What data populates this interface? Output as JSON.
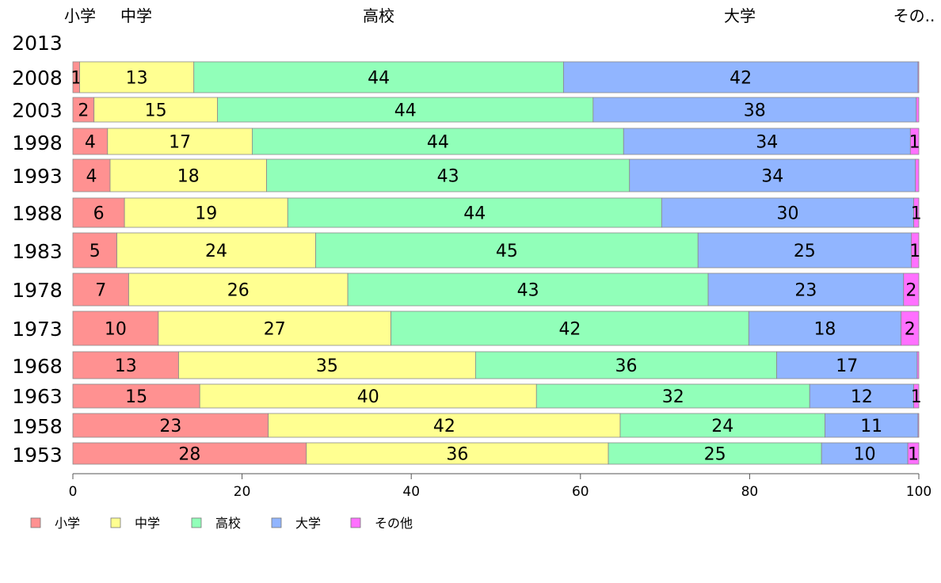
{
  "chart_data": {
    "type": "bar",
    "orientation": "horizontal",
    "stacked": true,
    "categories": [
      "2013",
      "2008",
      "2003",
      "1998",
      "1993",
      "1988",
      "1983",
      "1978",
      "1973",
      "1968",
      "1963",
      "1958",
      "1953"
    ],
    "series": [
      {
        "name": "小学",
        "color": "#ff9191",
        "values": [
          null,
          0.8,
          2.5,
          4.1,
          4.4,
          6.1,
          5.2,
          6.6,
          10.1,
          12.5,
          15.0,
          23.1,
          27.6
        ]
      },
      {
        "name": "中学",
        "color": "#ffff91",
        "values": [
          null,
          13.5,
          14.6,
          17.1,
          18.5,
          19.3,
          23.5,
          25.9,
          27.5,
          35.1,
          39.8,
          41.6,
          35.7
        ]
      },
      {
        "name": "高校",
        "color": "#91ffb9",
        "values": [
          null,
          43.7,
          44.4,
          43.9,
          42.9,
          44.2,
          45.2,
          42.6,
          42.3,
          35.6,
          32.3,
          24.2,
          25.2
        ]
      },
      {
        "name": "大学",
        "color": "#91b5ff",
        "values": [
          null,
          41.9,
          38.2,
          33.9,
          33.8,
          29.8,
          25.2,
          23.1,
          18.0,
          16.6,
          12.3,
          11.0,
          10.2
        ]
      },
      {
        "name": "その他",
        "color": "#ff70ff",
        "values": [
          null,
          0.1,
          0.3,
          1.0,
          0.4,
          0.6,
          0.9,
          1.8,
          2.1,
          0.2,
          0.6,
          0.1,
          1.3
        ]
      }
    ],
    "data_labels": [
      [],
      [
        "1",
        "13",
        "44",
        "42",
        ""
      ],
      [
        "2",
        "15",
        "44",
        "38",
        ""
      ],
      [
        "4",
        "17",
        "44",
        "34",
        "1"
      ],
      [
        "4",
        "18",
        "43",
        "34",
        ""
      ],
      [
        "6",
        "19",
        "44",
        "30",
        "1"
      ],
      [
        "5",
        "24",
        "45",
        "25",
        "1"
      ],
      [
        "7",
        "26",
        "43",
        "23",
        "2"
      ],
      [
        "10",
        "27",
        "42",
        "18",
        "2"
      ],
      [
        "13",
        "35",
        "36",
        "17",
        ""
      ],
      [
        "15",
        "40",
        "32",
        "12",
        "1"
      ],
      [
        "23",
        "42",
        "24",
        "11",
        ""
      ],
      [
        "28",
        "36",
        "25",
        "10",
        "1"
      ]
    ],
    "column_headers": [
      "小学",
      "中学",
      "高校",
      "大学",
      "その.."
    ],
    "xlim": [
      0,
      100
    ],
    "xticks": [
      "0",
      "20",
      "40",
      "60",
      "80",
      "100"
    ],
    "grid": false,
    "legend": {
      "position": "bottom-left",
      "entries": [
        "小学",
        "中学",
        "高校",
        "大学",
        "その他"
      ]
    },
    "title": "",
    "xlabel": "",
    "ylabel": ""
  }
}
